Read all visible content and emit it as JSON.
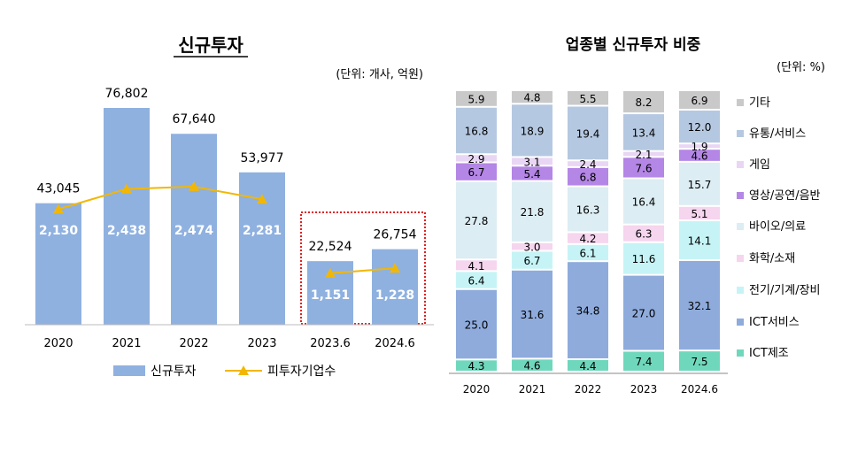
{
  "chart_data": [
    {
      "type": "bar",
      "title": "신규투자",
      "unit_note": "(단위: 개사, 억원)",
      "categories": [
        "2020",
        "2021",
        "2022",
        "2023",
        "2023.6",
        "2024.6"
      ],
      "series": [
        {
          "name": "신규투자",
          "type": "bar",
          "values": [
            43045,
            76802,
            67640,
            53977,
            22524,
            26754
          ],
          "labels": [
            "43,045",
            "76,802",
            "67,640",
            "53,977",
            "22,524",
            "26,754"
          ],
          "color": "#8fb1e0"
        },
        {
          "name": "피투자기업수",
          "type": "line",
          "values": [
            2130,
            2438,
            2474,
            2281,
            1151,
            1228
          ],
          "labels": [
            "2,130",
            "2,438",
            "2,474",
            "2,281",
            "1,151",
            "1,228"
          ],
          "color": "#f2b705"
        }
      ],
      "highlight": {
        "categories": [
          "2023.6",
          "2024.6"
        ],
        "color": "#e02020",
        "style": "dotted"
      },
      "legend": "bottom",
      "grid": false
    },
    {
      "type": "bar",
      "stacked": true,
      "title": "업종별 신규투자 비중",
      "unit_note": "(단위: %)",
      "categories": [
        "2020",
        "2021",
        "2022",
        "2023",
        "2024.6"
      ],
      "series": [
        {
          "name": "ICT제조",
          "color": "#6fd8bc",
          "values": [
            4.3,
            4.6,
            4.4,
            7.4,
            7.5
          ]
        },
        {
          "name": "ICT서비스",
          "color": "#8eabdc",
          "values": [
            25.0,
            31.6,
            34.8,
            27.0,
            32.1
          ]
        },
        {
          "name": "전기/기계/장비",
          "color": "#c6f4f6",
          "values": [
            6.4,
            6.7,
            6.1,
            11.6,
            14.1
          ]
        },
        {
          "name": "화학/소재",
          "color": "#f6d5ee",
          "values": [
            4.1,
            3.0,
            4.2,
            6.3,
            5.1
          ]
        },
        {
          "name": "바이오/의료",
          "color": "#dcedf3",
          "values": [
            27.8,
            21.8,
            16.3,
            16.4,
            15.7
          ]
        },
        {
          "name": "영상/공연/음반",
          "color": "#b486e6",
          "values": [
            6.7,
            5.4,
            6.8,
            7.6,
            4.6
          ]
        },
        {
          "name": "게임",
          "color": "#e9d6f4",
          "values": [
            2.9,
            3.1,
            2.4,
            2.1,
            1.9
          ]
        },
        {
          "name": "유통/서비스",
          "color": "#b5c8e1",
          "values": [
            16.8,
            18.9,
            19.4,
            13.4,
            12.0
          ]
        },
        {
          "name": "기타",
          "color": "#c9c9c9",
          "values": [
            5.9,
            4.8,
            5.5,
            8.2,
            6.9
          ]
        }
      ],
      "legend": "right",
      "grid": false
    }
  ]
}
